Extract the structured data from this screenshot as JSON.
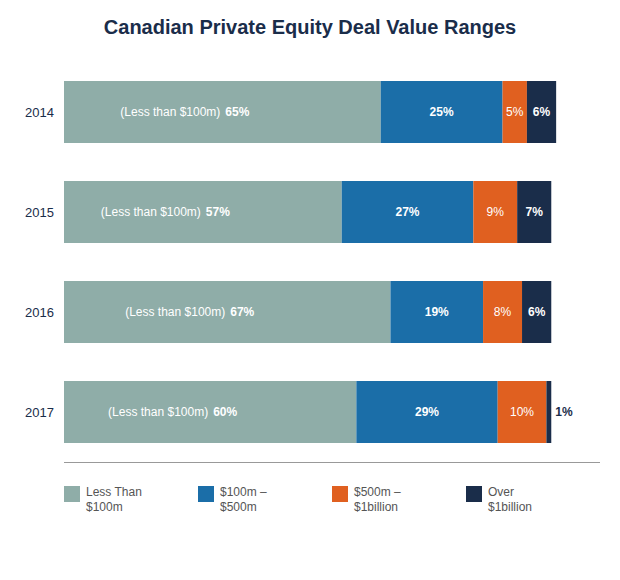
{
  "chart_data": {
    "type": "bar",
    "orientation": "horizontal",
    "stacked": true,
    "title": "Canadian Private Equity Deal Value Ranges",
    "categories": [
      "2014",
      "2015",
      "2016",
      "2017"
    ],
    "series": [
      {
        "name": "Less Than\n$100m",
        "color": "#8FADA8",
        "values": [
          65,
          57,
          67,
          60
        ],
        "value_labels": [
          "65%",
          "57%",
          "67%",
          "60%"
        ]
      },
      {
        "name": "$100m –\n$500m",
        "color": "#1B6EA8",
        "values": [
          25,
          27,
          19,
          29
        ],
        "value_labels": [
          "25%",
          "27%",
          "19%",
          "29%"
        ]
      },
      {
        "name": "$500m –\n$1billion",
        "color": "#E06020",
        "values": [
          5,
          9,
          8,
          10
        ],
        "value_labels": [
          "5%",
          "9%",
          "8%",
          "10%"
        ]
      },
      {
        "name": "Over\n$1billion",
        "color": "#1A2D4A",
        "values": [
          6,
          7,
          6,
          1
        ],
        "value_labels": [
          "6%",
          "7%",
          "6%",
          "1%"
        ]
      }
    ],
    "annotations": [
      {
        "text": "(Less than $100m)",
        "category": "2014"
      },
      {
        "text": "(Less than $100m)",
        "category": "2015"
      },
      {
        "text": "(Less than $100m)",
        "category": "2016"
      },
      {
        "text": "(Less than $100m)",
        "category": "2017"
      }
    ],
    "xlim": [
      0,
      110
    ],
    "data_labels": true,
    "tick_labels": "y",
    "grid": false,
    "legend": "bottom"
  }
}
